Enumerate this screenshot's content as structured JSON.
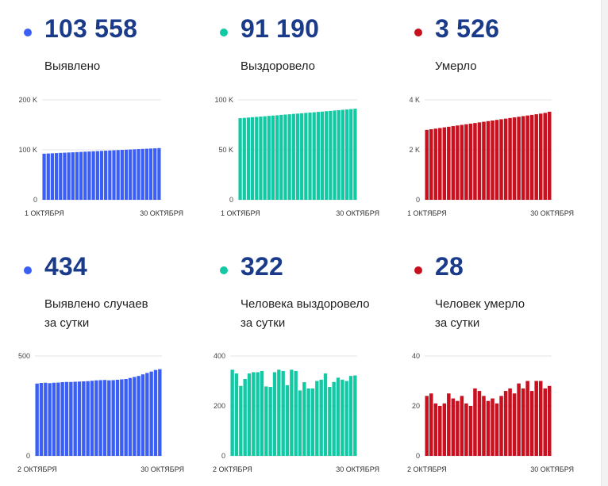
{
  "colors": {
    "blue": "#3b5ff5",
    "green": "#12c9a4",
    "red": "#c8101e",
    "number": "#1a3a8a"
  },
  "panels": [
    {
      "number": "103 558",
      "label": [
        "Выявлено"
      ],
      "color": "blue"
    },
    {
      "number": "91 190",
      "label": [
        "Выздоровело"
      ],
      "color": "green"
    },
    {
      "number": "3 526",
      "label": [
        "Умерло"
      ],
      "color": "red"
    },
    {
      "number": "434",
      "label": [
        "Выявлено случаев",
        "за сутки"
      ],
      "color": "blue"
    },
    {
      "number": "322",
      "label": [
        "Человека выздоровело",
        "за сутки"
      ],
      "color": "green"
    },
    {
      "number": "28",
      "label": [
        "Человек умерло",
        "за сутки"
      ],
      "color": "red"
    }
  ],
  "chart_data": [
    {
      "type": "bar",
      "ylim": [
        0,
        200000
      ],
      "yticks": [
        {
          "v": 0,
          "label": "0"
        },
        {
          "v": 100000,
          "label": "100 K"
        },
        {
          "v": 200000,
          "label": "200 K"
        }
      ],
      "xlabels": [
        "1 ОКТЯБРЯ",
        "30 ОКТЯБРЯ"
      ],
      "values": [
        92300,
        92700,
        93100,
        93500,
        93900,
        94300,
        94700,
        95100,
        95500,
        95900,
        96300,
        96700,
        97100,
        97500,
        97900,
        98300,
        98700,
        99100,
        99500,
        99900,
        100300,
        100700,
        101100,
        101500,
        101900,
        102300,
        102700,
        103100,
        103558
      ]
    },
    {
      "type": "bar",
      "ylim": [
        0,
        100000
      ],
      "yticks": [
        {
          "v": 0,
          "label": "0"
        },
        {
          "v": 50000,
          "label": "50 K"
        },
        {
          "v": 100000,
          "label": "100 K"
        }
      ],
      "xlabels": [
        "1 ОКТЯБРЯ",
        "30 ОКТЯБРЯ"
      ],
      "values": [
        81700,
        82000,
        82300,
        82700,
        83000,
        83300,
        83600,
        84000,
        84300,
        84600,
        85000,
        85300,
        85600,
        86000,
        86300,
        86600,
        87000,
        87300,
        87600,
        88000,
        88300,
        88700,
        89000,
        89400,
        89700,
        90100,
        90400,
        90800,
        91190
      ]
    },
    {
      "type": "bar",
      "ylim": [
        0,
        4000
      ],
      "yticks": [
        {
          "v": 0,
          "label": "0"
        },
        {
          "v": 2000,
          "label": "2 K"
        },
        {
          "v": 4000,
          "label": "4 K"
        }
      ],
      "xlabels": [
        "1 ОКТЯБРЯ",
        "30 ОКТЯБРЯ"
      ],
      "values": [
        2800,
        2825,
        2850,
        2875,
        2900,
        2925,
        2950,
        2975,
        3000,
        3025,
        3050,
        3075,
        3100,
        3125,
        3150,
        3175,
        3200,
        3225,
        3250,
        3275,
        3300,
        3325,
        3350,
        3375,
        3400,
        3425,
        3450,
        3480,
        3526
      ]
    },
    {
      "type": "bar",
      "ylim": [
        0,
        500
      ],
      "yticks": [
        {
          "v": 0,
          "label": "0"
        },
        {
          "v": 500,
          "label": "500"
        }
      ],
      "xlabels": [
        "2 ОКТЯБРЯ",
        "30 ОКТЯБРЯ"
      ],
      "values": [
        362,
        365,
        366,
        364,
        366,
        367,
        369,
        370,
        370,
        371,
        372,
        373,
        374,
        376,
        378,
        379,
        380,
        378,
        379,
        381,
        383,
        385,
        390,
        395,
        400,
        408,
        415,
        422,
        430,
        434
      ]
    },
    {
      "type": "bar",
      "ylim": [
        0,
        400
      ],
      "yticks": [
        {
          "v": 0,
          "label": "0"
        },
        {
          "v": 200,
          "label": "200"
        },
        {
          "v": 400,
          "label": "400"
        }
      ],
      "xlabels": [
        "2 ОКТЯБРЯ",
        "30 ОКТЯБРЯ"
      ],
      "values": [
        345,
        330,
        280,
        308,
        330,
        335,
        335,
        340,
        278,
        276,
        335,
        345,
        340,
        283,
        345,
        340,
        262,
        295,
        270,
        270,
        300,
        305,
        330,
        276,
        296,
        313,
        305,
        300,
        320,
        322
      ]
    },
    {
      "type": "bar",
      "ylim": [
        0,
        40
      ],
      "yticks": [
        {
          "v": 0,
          "label": "0"
        },
        {
          "v": 20,
          "label": "20"
        },
        {
          "v": 40,
          "label": "40"
        }
      ],
      "xlabels": [
        "2 ОКТЯБРЯ",
        "30 ОКТЯБРЯ"
      ],
      "values": [
        24,
        25,
        21,
        20,
        21,
        25,
        23,
        22,
        24,
        21,
        20,
        27,
        26,
        24,
        22,
        23,
        21,
        24,
        26,
        27,
        25,
        29,
        27,
        30,
        26,
        30,
        30,
        27,
        28
      ]
    }
  ]
}
